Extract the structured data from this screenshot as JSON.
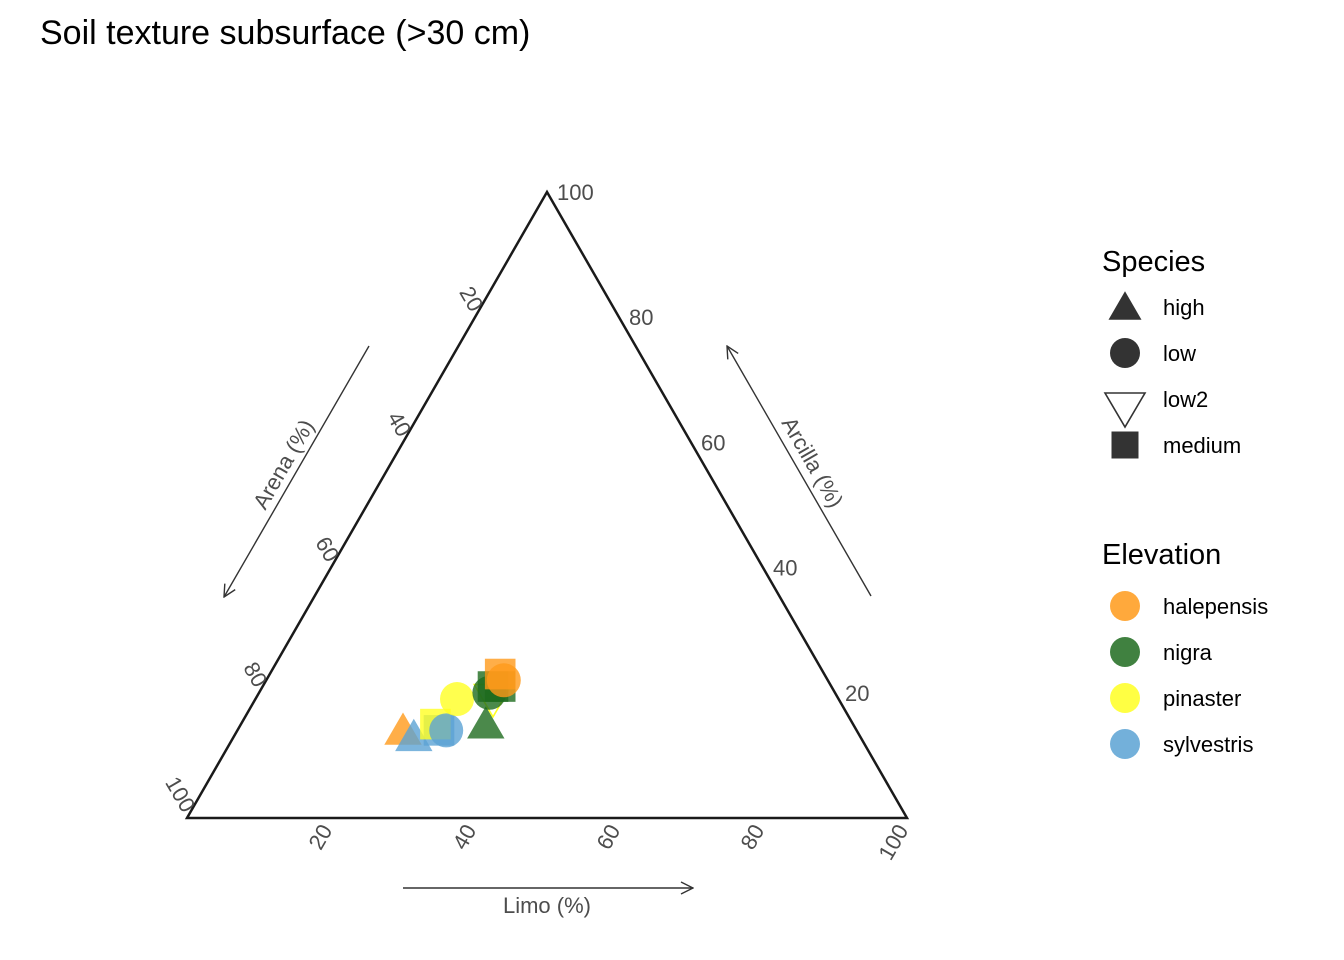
{
  "chart_data": {
    "type": "scatter",
    "subtype": "ternary",
    "title": "Soil texture subsurface (>30 cm)",
    "axes": {
      "left": {
        "label": "Arena (%)",
        "ticks": [
          20,
          40,
          60,
          80,
          100
        ],
        "range": [
          0,
          100
        ]
      },
      "bottom": {
        "label": "Limo (%)",
        "ticks": [
          20,
          40,
          60,
          80,
          100
        ],
        "range": [
          0,
          100
        ]
      },
      "right": {
        "label": "Arcilla (%)",
        "ticks": [
          20,
          40,
          60,
          80,
          100
        ],
        "range": [
          0,
          100
        ]
      }
    },
    "grid": false,
    "legends": [
      {
        "title": "Species",
        "kind": "shape",
        "items": [
          {
            "label": "high",
            "shape": "triangle"
          },
          {
            "label": "low",
            "shape": "circle"
          },
          {
            "label": "low2",
            "shape": "triangle-down-open"
          },
          {
            "label": "medium",
            "shape": "square"
          }
        ]
      },
      {
        "title": "Elevation",
        "kind": "color",
        "items": [
          {
            "label": "halepensis",
            "color": "#ff9a1a"
          },
          {
            "label": "nigra",
            "color": "#1e6b1e"
          },
          {
            "label": "pinaster",
            "color": "#ffff22"
          },
          {
            "label": "sylvestris",
            "color": "#5ba2d4"
          }
        ]
      }
    ],
    "legend_position": "right",
    "points": [
      {
        "arena": 63,
        "limo": 23,
        "arcilla": 14,
        "species": "high",
        "elevation": "halepensis"
      },
      {
        "arena": 62,
        "limo": 25,
        "arcilla": 13,
        "species": "high",
        "elevation": "sylvestris"
      },
      {
        "arena": 58,
        "limo": 28,
        "arcilla": 14,
        "species": "medium",
        "elevation": "sylvestris"
      },
      {
        "arena": 58,
        "limo": 27,
        "arcilla": 15,
        "species": "medium",
        "elevation": "pinaster"
      },
      {
        "arena": 57,
        "limo": 29,
        "arcilla": 14,
        "species": "low",
        "elevation": "sylvestris"
      },
      {
        "arena": 53,
        "limo": 28,
        "arcilla": 19,
        "species": "low",
        "elevation": "pinaster"
      },
      {
        "arena": 51,
        "limo": 34,
        "arcilla": 15,
        "species": "high",
        "elevation": "nigra"
      },
      {
        "arena": 48,
        "limo": 33,
        "arcilla": 19,
        "species": "low2",
        "elevation": "pinaster"
      },
      {
        "arena": 48,
        "limo": 32,
        "arcilla": 20,
        "species": "low",
        "elevation": "nigra"
      },
      {
        "arena": 47,
        "limo": 32,
        "arcilla": 21,
        "species": "medium",
        "elevation": "nigra"
      },
      {
        "arena": 46,
        "limo": 33,
        "arcilla": 21,
        "species": "medium",
        "elevation": "nigra"
      },
      {
        "arena": 45,
        "limo": 32,
        "arcilla": 23,
        "species": "medium",
        "elevation": "halepensis"
      },
      {
        "arena": 45,
        "limo": 33,
        "arcilla": 22,
        "species": "low",
        "elevation": "halepensis"
      }
    ]
  }
}
